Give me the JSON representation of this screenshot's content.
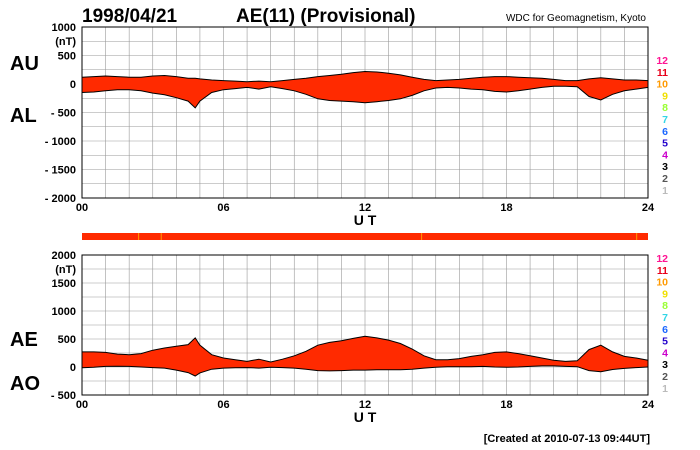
{
  "header": {
    "date": "1998/04/21",
    "title": "AE(11) (Provisional)",
    "source": "WDC for Geomagnetism, Kyoto"
  },
  "footer": {
    "created": "[Created at 2010-07-13 09:44UT]"
  },
  "colors": {
    "fill": "#ff2a00",
    "outline": "#000000",
    "grid": "#999999"
  },
  "station_scale": [
    {
      "label": "12",
      "color": "#ff1493"
    },
    {
      "label": "11",
      "color": "#e8001a"
    },
    {
      "label": "10",
      "color": "#ff9a00"
    },
    {
      "label": "9",
      "color": "#f0e000"
    },
    {
      "label": "8",
      "color": "#99ff33"
    },
    {
      "label": "7",
      "color": "#33d6e6"
    },
    {
      "label": "6",
      "color": "#1a66ff"
    },
    {
      "label": "5",
      "color": "#2200cc"
    },
    {
      "label": "4",
      "color": "#cc00cc"
    },
    {
      "label": "3",
      "color": "#000000"
    },
    {
      "label": "2",
      "color": "#555555"
    },
    {
      "label": "1",
      "color": "#bbbbbb"
    }
  ],
  "chart_data": [
    {
      "type": "area",
      "name": "AU-AL",
      "top_label": "AU",
      "bottom_label": "AL",
      "unit": "(nT)",
      "xlabel": "U T",
      "xlim": [
        0,
        24
      ],
      "xticks": [
        "00",
        "06",
        "12",
        "18",
        "24"
      ],
      "ylim": [
        -2000,
        1000
      ],
      "yticks": [
        "1000",
        "500",
        "0",
        "- 500",
        "- 1000",
        "- 1500",
        "- 2000"
      ],
      "grid": true,
      "x": [
        0,
        0.5,
        1,
        1.5,
        2,
        2.5,
        3,
        3.5,
        4,
        4.5,
        4.8,
        5,
        5.5,
        6,
        6.5,
        7,
        7.5,
        8,
        8.5,
        9,
        9.5,
        10,
        10.5,
        11,
        11.5,
        12,
        12.5,
        13,
        13.5,
        14,
        14.5,
        15,
        15.5,
        16,
        16.5,
        17,
        17.5,
        18,
        18.5,
        19,
        19.5,
        20,
        20.5,
        21,
        21.5,
        22,
        22.5,
        23,
        23.5,
        24
      ],
      "series": [
        {
          "name": "AU",
          "values": [
            120,
            130,
            140,
            130,
            120,
            120,
            140,
            150,
            130,
            100,
            100,
            90,
            70,
            60,
            50,
            40,
            50,
            40,
            60,
            80,
            100,
            130,
            150,
            170,
            200,
            220,
            210,
            190,
            160,
            120,
            80,
            60,
            70,
            80,
            100,
            120,
            130,
            130,
            120,
            110,
            100,
            80,
            60,
            60,
            90,
            110,
            90,
            70,
            70,
            60
          ]
        },
        {
          "name": "AL",
          "values": [
            -150,
            -140,
            -120,
            -100,
            -100,
            -120,
            -160,
            -190,
            -240,
            -300,
            -420,
            -300,
            -150,
            -100,
            -80,
            -60,
            -90,
            -50,
            -80,
            -120,
            -180,
            -260,
            -290,
            -300,
            -310,
            -330,
            -310,
            -290,
            -260,
            -200,
            -120,
            -70,
            -60,
            -70,
            -90,
            -100,
            -130,
            -140,
            -120,
            -90,
            -60,
            -40,
            -40,
            -50,
            -220,
            -280,
            -180,
            -120,
            -90,
            -60
          ]
        }
      ]
    },
    {
      "type": "area",
      "name": "AE-AO",
      "top_label": "AE",
      "bottom_label": "AO",
      "unit": "(nT)",
      "xlabel": "U T",
      "xlim": [
        0,
        24
      ],
      "xticks": [
        "00",
        "06",
        "12",
        "18",
        "24"
      ],
      "ylim": [
        -500,
        2000
      ],
      "yticks": [
        "2000",
        "(nT)",
        "1500",
        "1000",
        "500",
        "0",
        "- 500"
      ],
      "grid": true,
      "x": [
        0,
        0.5,
        1,
        1.5,
        2,
        2.5,
        3,
        3.5,
        4,
        4.5,
        4.8,
        5,
        5.5,
        6,
        6.5,
        7,
        7.5,
        8,
        8.5,
        9,
        9.5,
        10,
        10.5,
        11,
        11.5,
        12,
        12.5,
        13,
        13.5,
        14,
        14.5,
        15,
        15.5,
        16,
        16.5,
        17,
        17.5,
        18,
        18.5,
        19,
        19.5,
        20,
        20.5,
        21,
        21.5,
        22,
        22.5,
        23,
        23.5,
        24
      ],
      "series": [
        {
          "name": "AE",
          "values": [
            270,
            270,
            260,
            230,
            220,
            240,
            300,
            340,
            370,
            400,
            520,
            390,
            220,
            160,
            130,
            100,
            140,
            90,
            140,
            200,
            280,
            390,
            440,
            470,
            510,
            550,
            520,
            480,
            420,
            320,
            200,
            130,
            130,
            150,
            190,
            220,
            260,
            270,
            240,
            200,
            160,
            120,
            100,
            110,
            310,
            390,
            270,
            190,
            160,
            120
          ]
        },
        {
          "name": "AO",
          "values": [
            -15,
            -5,
            10,
            15,
            10,
            0,
            -10,
            -20,
            -55,
            -100,
            -160,
            -105,
            -40,
            -20,
            -15,
            -10,
            -20,
            -5,
            -10,
            -20,
            -40,
            -65,
            -70,
            -65,
            -55,
            -55,
            -50,
            -50,
            -50,
            -40,
            -20,
            -5,
            5,
            5,
            5,
            10,
            0,
            -5,
            0,
            10,
            20,
            20,
            10,
            5,
            -65,
            -85,
            -45,
            -25,
            -10,
            0
          ]
        }
      ]
    }
  ]
}
